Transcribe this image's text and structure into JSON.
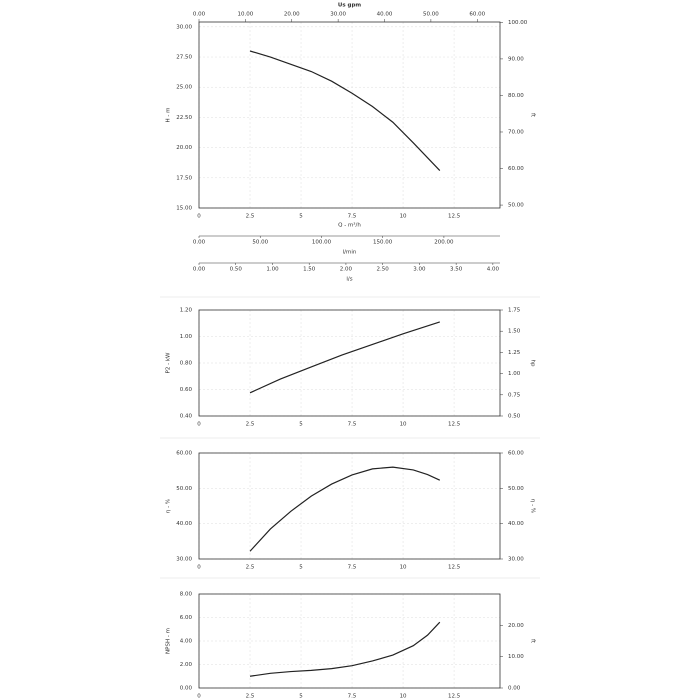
{
  "chart_data": [
    {
      "type": "line",
      "x_label": "Q - m³/h",
      "y_label": "H - m",
      "y2_label": "ft",
      "color": "#222",
      "grid": true,
      "x": [
        2.5,
        3.5,
        4.5,
        5.5,
        6.5,
        7.5,
        8.5,
        9.5,
        10.5,
        11.8
      ],
      "values": [
        28.0,
        27.5,
        26.9,
        26.3,
        25.5,
        24.5,
        23.4,
        22.1,
        20.4,
        18.1
      ],
      "xlim": [
        0,
        14.75
      ],
      "xticks": [
        0,
        2.5,
        5,
        7.5,
        10,
        12.5
      ],
      "ylim": [
        15,
        30.4
      ],
      "yticks": [
        {
          "value": 15,
          "label": "15.00"
        },
        {
          "value": 17.5,
          "label": "17.50"
        },
        {
          "value": 20,
          "label": "20.00"
        },
        {
          "value": 22.5,
          "label": "22.50"
        },
        {
          "value": 25,
          "label": "25.00"
        },
        {
          "value": 27.5,
          "label": "27.50"
        },
        {
          "value": 30,
          "label": "30.00"
        }
      ],
      "y2lim": [
        49.2,
        100.1
      ],
      "y2ticks": [
        {
          "value": 50,
          "label": "50.00"
        },
        {
          "value": 60,
          "label": "60.00"
        },
        {
          "value": 70,
          "label": "70.00"
        },
        {
          "value": 80,
          "label": "80.00"
        },
        {
          "value": 90,
          "label": "90.00"
        },
        {
          "value": 100,
          "label": "100.00"
        }
      ],
      "x_top": {
        "label": "Us gpm",
        "xlim": [
          0,
          64.9
        ],
        "xticks": [
          {
            "value": 0,
            "label": "0.00"
          },
          {
            "value": 10,
            "label": "10.00"
          },
          {
            "value": 20,
            "label": "20.00"
          },
          {
            "value": 30,
            "label": "30.00"
          },
          {
            "value": 40,
            "label": "40.00"
          },
          {
            "value": 50,
            "label": "50.00"
          },
          {
            "value": 60,
            "label": "60.00"
          }
        ]
      },
      "x_extra": [
        {
          "label": "l/min",
          "xlim": [
            0,
            245.8
          ],
          "xticks": [
            {
              "value": 0,
              "label": "0.00"
            },
            {
              "value": 50,
              "label": "50.00"
            },
            {
              "value": 100,
              "label": "100.00"
            },
            {
              "value": 150,
              "label": "150.00"
            },
            {
              "value": 200,
              "label": "200.00"
            }
          ]
        },
        {
          "label": "l/s",
          "xlim": [
            0,
            4.097
          ],
          "xticks": [
            {
              "value": 0,
              "label": "0.00"
            },
            {
              "value": 0.5,
              "label": "0.50"
            },
            {
              "value": 1,
              "label": "1.00"
            },
            {
              "value": 1.5,
              "label": "1.50"
            },
            {
              "value": 2,
              "label": "2.00"
            },
            {
              "value": 2.5,
              "label": "2.50"
            },
            {
              "value": 3,
              "label": "3.00"
            },
            {
              "value": 3.5,
              "label": "3.50"
            },
            {
              "value": 4,
              "label": "4.00"
            }
          ]
        }
      ]
    },
    {
      "type": "line",
      "y_label": "P2 - kW",
      "y2_label": "hp",
      "color": "#222",
      "grid": true,
      "x": [
        2.5,
        4,
        5.5,
        7,
        8.5,
        10,
        11.8
      ],
      "values": [
        0.575,
        0.68,
        0.77,
        0.86,
        0.94,
        1.02,
        1.11
      ],
      "xlim": [
        0,
        14.75
      ],
      "xticks": [
        0,
        2.5,
        5,
        7.5,
        10,
        12.5
      ],
      "ylim": [
        0.4,
        1.2
      ],
      "yticks": [
        {
          "value": 0.4,
          "label": "0.40"
        },
        {
          "value": 0.6,
          "label": "0.60"
        },
        {
          "value": 0.8,
          "label": "0.80"
        },
        {
          "value": 1.0,
          "label": "1.00"
        },
        {
          "value": 1.2,
          "label": "1.20"
        }
      ],
      "y2lim": [
        0.5,
        1.75
      ],
      "y2ticks": [
        {
          "value": 0.5,
          "label": "0.50"
        },
        {
          "value": 0.75,
          "label": "0.75"
        },
        {
          "value": 1.0,
          "label": "1.00"
        },
        {
          "value": 1.25,
          "label": "1.25"
        },
        {
          "value": 1.5,
          "label": "1.50"
        },
        {
          "value": 1.75,
          "label": "1.75"
        }
      ]
    },
    {
      "type": "line",
      "y_label": "η - %",
      "y2_label": "η - %",
      "color": "#222",
      "grid": true,
      "x": [
        2.5,
        3.5,
        4.5,
        5.5,
        6.5,
        7.5,
        8.5,
        9.5,
        10.5,
        11.2,
        11.8
      ],
      "values": [
        32.2,
        38.5,
        43.5,
        47.8,
        51.2,
        53.8,
        55.5,
        56.0,
        55.2,
        53.9,
        52.3
      ],
      "xlim": [
        0,
        14.75
      ],
      "xticks": [
        0,
        2.5,
        5,
        7.5,
        10,
        12.5
      ],
      "ylim": [
        30,
        60
      ],
      "yticks": [
        {
          "value": 30,
          "label": "30.00"
        },
        {
          "value": 40,
          "label": "40.00"
        },
        {
          "value": 50,
          "label": "50.00"
        },
        {
          "value": 60,
          "label": "60.00"
        }
      ],
      "y2lim": [
        30,
        60
      ],
      "y2ticks": [
        {
          "value": 30,
          "label": "30.00"
        },
        {
          "value": 40,
          "label": "40.00"
        },
        {
          "value": 50,
          "label": "50.00"
        },
        {
          "value": 60,
          "label": "60.00"
        }
      ]
    },
    {
      "type": "line",
      "y_label": "NPSH - m",
      "y2_label": "ft",
      "color": "#222",
      "grid": true,
      "x": [
        2.5,
        3.5,
        4.5,
        5.5,
        6.5,
        7.5,
        8.5,
        9.5,
        10.5,
        11.2,
        11.8
      ],
      "values": [
        1.0,
        1.25,
        1.4,
        1.5,
        1.65,
        1.9,
        2.3,
        2.8,
        3.6,
        4.5,
        5.6
      ],
      "xlim": [
        0,
        14.75
      ],
      "xticks": [
        0,
        2.5,
        5,
        7.5,
        10,
        12.5
      ],
      "ylim": [
        0,
        8
      ],
      "yticks": [
        {
          "value": 0,
          "label": "0.00"
        },
        {
          "value": 2,
          "label": "2.00"
        },
        {
          "value": 4,
          "label": "4.00"
        },
        {
          "value": 6,
          "label": "6.00"
        },
        {
          "value": 8,
          "label": "8.00"
        }
      ],
      "y2lim": [
        0,
        30
      ],
      "y2ticks": [
        {
          "value": 0,
          "label": "0.00"
        },
        {
          "value": 10,
          "label": "10.00"
        },
        {
          "value": 20,
          "label": "20.00"
        }
      ]
    }
  ]
}
